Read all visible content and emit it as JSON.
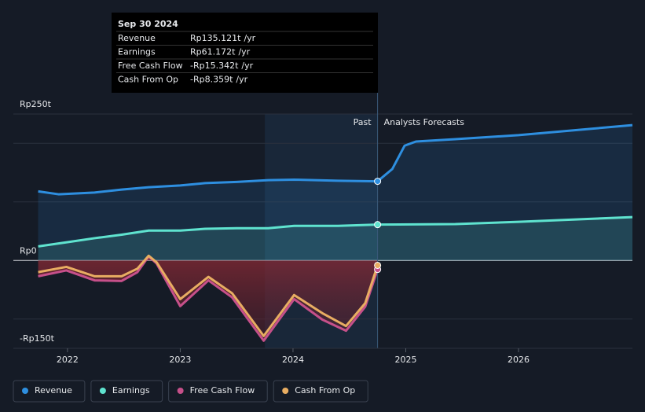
{
  "chart_data": {
    "type": "line",
    "xlim": [
      2021.52,
      2027.01
    ],
    "xticks": [
      2022,
      2023,
      2024,
      2025,
      2026
    ],
    "ylim": [
      -150,
      250
    ],
    "yticks": [
      {
        "value": 250,
        "label": "Rp250t"
      },
      {
        "value": 0,
        "label": "Rp0"
      },
      {
        "value": -150,
        "label": "-Rp150t"
      }
    ],
    "minor_grid": [
      200,
      100,
      -100
    ],
    "grid": true,
    "divider_x": 2024.75,
    "highlight_band": [
      2023.75,
      2024.75
    ],
    "past_label": "Past",
    "forecast_label": "Analysts Forecasts",
    "series": [
      {
        "name": "Revenue",
        "color": "#2e8fe0",
        "fill": true,
        "x": [
          2021.74,
          2021.92,
          2022.24,
          2022.48,
          2022.72,
          2023.0,
          2023.22,
          2023.5,
          2023.78,
          2024.01,
          2024.4,
          2024.75,
          2024.88,
          2024.99,
          2025.09,
          2025.44,
          2026.0,
          2027.01
        ],
        "values": [
          118,
          113,
          116,
          121,
          125,
          128,
          132,
          134,
          137,
          138,
          136,
          135.121,
          156,
          196,
          203,
          207,
          214,
          231
        ]
      },
      {
        "name": "Earnings",
        "color": "#5fe3cf",
        "fill": true,
        "x": [
          2021.74,
          2022.03,
          2022.24,
          2022.48,
          2022.72,
          2023.0,
          2023.22,
          2023.5,
          2023.78,
          2024.01,
          2024.4,
          2024.75,
          2025.44,
          2026.0,
          2027.01
        ],
        "values": [
          24,
          32,
          38,
          44,
          51,
          51,
          54,
          55,
          55,
          59,
          59,
          61.172,
          62,
          66,
          74
        ]
      },
      {
        "name": "Free Cash Flow",
        "color": "#c6508a",
        "fill": true,
        "x": [
          2021.74,
          2021.99,
          2022.24,
          2022.48,
          2022.62,
          2022.72,
          2022.79,
          2023.0,
          2023.25,
          2023.46,
          2023.74,
          2024.01,
          2024.26,
          2024.47,
          2024.64,
          2024.75
        ],
        "values": [
          -27,
          -17,
          -34,
          -35,
          -20,
          7,
          -5,
          -78,
          -34,
          -63,
          -137,
          -66,
          -101,
          -120,
          -79,
          -15.342
        ]
      },
      {
        "name": "Cash From Op",
        "color": "#e8ad62",
        "fill": false,
        "x": [
          2021.74,
          2021.99,
          2022.24,
          2022.48,
          2022.62,
          2022.72,
          2022.79,
          2023.0,
          2023.25,
          2023.46,
          2023.74,
          2024.01,
          2024.26,
          2024.47,
          2024.64,
          2024.75
        ],
        "values": [
          -20,
          -11,
          -27,
          -27,
          -14,
          8,
          -3,
          -66,
          -28,
          -56,
          -129,
          -59,
          -90,
          -112,
          -73,
          -8.359
        ]
      }
    ],
    "tooltip": {
      "title": "Sep 30 2024",
      "rows": [
        {
          "label": "Revenue",
          "value_label": "Rp135.121t",
          "unit": "/yr",
          "color": "#2e8fe0"
        },
        {
          "label": "Earnings",
          "value_label": "Rp61.172t",
          "unit": "/yr",
          "color": "#5fe3cf"
        },
        {
          "label": "Free Cash Flow",
          "value_label": "-Rp15.342t",
          "unit": "/yr",
          "color": "#e5454f"
        },
        {
          "label": "Cash From Op",
          "value_label": "-Rp8.359t",
          "unit": "/yr",
          "color": "#e5454f"
        }
      ]
    }
  }
}
